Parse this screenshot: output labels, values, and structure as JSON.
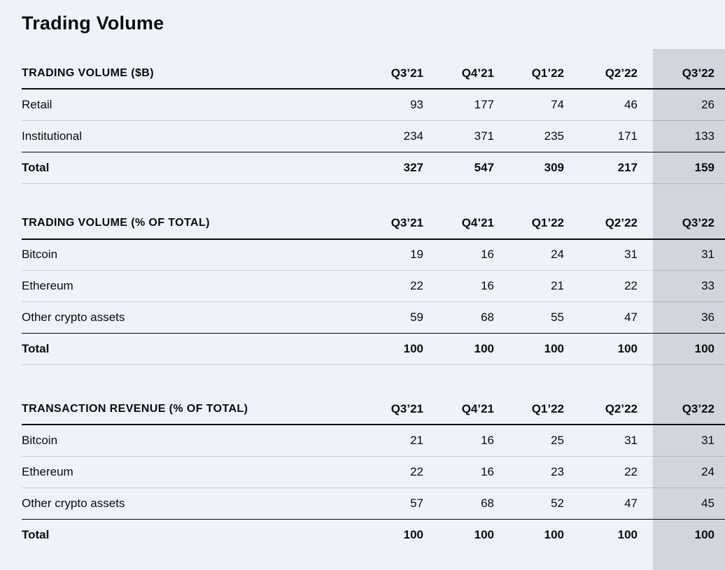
{
  "page": {
    "title": "Trading Volume"
  },
  "colors": {
    "background": "#eff2f9",
    "highlight_band": "#d3d5dd",
    "text": "#0a0b0d"
  },
  "highlight": {
    "column": "Q3’22"
  },
  "tables": [
    {
      "header": "TRADING VOLUME ($B)",
      "columns": [
        "Q3’21",
        "Q4’21",
        "Q1’22",
        "Q2’22",
        "Q3’22"
      ],
      "rows": [
        {
          "label": "Retail",
          "values": [
            "93",
            "177",
            "74",
            "46",
            "26"
          ]
        },
        {
          "label": "Institutional",
          "values": [
            "234",
            "371",
            "235",
            "171",
            "133"
          ]
        },
        {
          "label": "Total",
          "values": [
            "327",
            "547",
            "309",
            "217",
            "159"
          ],
          "total": true
        }
      ]
    },
    {
      "header": "TRADING VOLUME (% OF TOTAL)",
      "columns": [
        "Q3’21",
        "Q4’21",
        "Q1’22",
        "Q2’22",
        "Q3’22"
      ],
      "rows": [
        {
          "label": "Bitcoin",
          "values": [
            "19",
            "16",
            "24",
            "31",
            "31"
          ]
        },
        {
          "label": "Ethereum",
          "values": [
            "22",
            "16",
            "21",
            "22",
            "33"
          ]
        },
        {
          "label": "Other crypto assets",
          "values": [
            "59",
            "68",
            "55",
            "47",
            "36"
          ]
        },
        {
          "label": "Total",
          "values": [
            "100",
            "100",
            "100",
            "100",
            "100"
          ],
          "total": true
        }
      ]
    },
    {
      "header": "TRANSACTION REVENUE (% OF TOTAL)",
      "columns": [
        "Q3’21",
        "Q4’21",
        "Q1’22",
        "Q2’22",
        "Q3’22"
      ],
      "rows": [
        {
          "label": "Bitcoin",
          "values": [
            "21",
            "16",
            "25",
            "31",
            "31"
          ]
        },
        {
          "label": "Ethereum",
          "values": [
            "22",
            "16",
            "23",
            "22",
            "24"
          ]
        },
        {
          "label": "Other crypto assets",
          "values": [
            "57",
            "68",
            "52",
            "47",
            "45"
          ]
        },
        {
          "label": "Total",
          "values": [
            "100",
            "100",
            "100",
            "100",
            "100"
          ],
          "total": true
        }
      ]
    }
  ]
}
